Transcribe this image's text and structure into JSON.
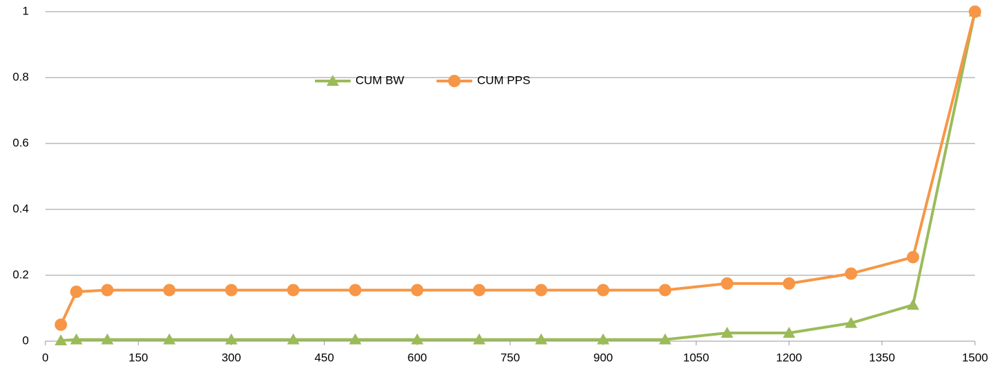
{
  "chart_data": {
    "type": "line",
    "x": [
      25,
      50,
      100,
      200,
      300,
      400,
      500,
      600,
      700,
      800,
      900,
      1000,
      1100,
      1200,
      1300,
      1400,
      1500
    ],
    "series": [
      {
        "name": "CUM BW",
        "color": "#9bbb59",
        "marker": "triangle",
        "values": [
          0.002,
          0.005,
          0.005,
          0.005,
          0.005,
          0.005,
          0.005,
          0.005,
          0.005,
          0.005,
          0.005,
          0.005,
          0.025,
          0.025,
          0.055,
          0.11,
          1
        ]
      },
      {
        "name": "CUM PPS",
        "color": "#f79646",
        "marker": "circle",
        "values": [
          0.05,
          0.15,
          0.155,
          0.155,
          0.155,
          0.155,
          0.155,
          0.155,
          0.155,
          0.155,
          0.155,
          0.155,
          0.175,
          0.175,
          0.205,
          0.255,
          1
        ]
      }
    ],
    "xlim": [
      0,
      1500
    ],
    "xticks": [
      0,
      150,
      300,
      450,
      600,
      750,
      900,
      1050,
      1200,
      1350,
      1500
    ],
    "ylim": [
      0,
      1
    ],
    "yticks": [
      0,
      0.2,
      0.4,
      0.6,
      0.8,
      1
    ],
    "grid": true,
    "legend": "top"
  }
}
